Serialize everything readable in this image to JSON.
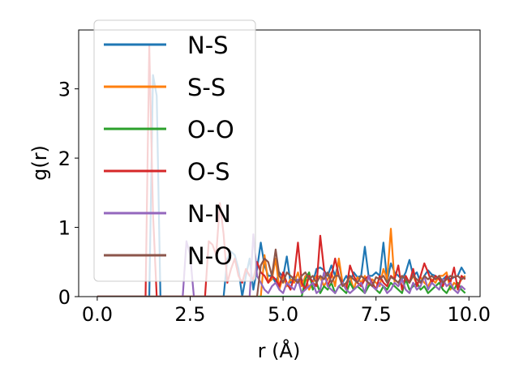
{
  "chart_data": {
    "type": "line",
    "title": "",
    "xlabel": "r (Å)",
    "ylabel": "g(r)",
    "xlim": [
      -0.5,
      10.3
    ],
    "ylim": [
      0,
      3.85
    ],
    "xticks": [
      0.0,
      2.5,
      5.0,
      7.5,
      10.0
    ],
    "xtick_labels": [
      "0.0",
      "2.5",
      "5.0",
      "7.5",
      "10.0"
    ],
    "yticks": [
      0,
      1,
      2,
      3
    ],
    "ytick_labels": [
      "0",
      "1",
      "2",
      "3"
    ],
    "grid": false,
    "legend_position": "top-left",
    "x": [
      0.0,
      0.1,
      0.2,
      0.3,
      0.4,
      0.5,
      0.6,
      0.7,
      0.8,
      0.9,
      1.0,
      1.1,
      1.2,
      1.3,
      1.4,
      1.5,
      1.6,
      1.7,
      1.8,
      1.9,
      2.0,
      2.1,
      2.2,
      2.3,
      2.4,
      2.5,
      2.6,
      2.7,
      2.8,
      2.9,
      3.0,
      3.1,
      3.2,
      3.3,
      3.4,
      3.5,
      3.6,
      3.7,
      3.8,
      3.9,
      4.0,
      4.1,
      4.2,
      4.3,
      4.4,
      4.5,
      4.6,
      4.7,
      4.8,
      4.9,
      5.0,
      5.1,
      5.2,
      5.3,
      5.4,
      5.5,
      5.6,
      5.7,
      5.8,
      5.9,
      6.0,
      6.1,
      6.2,
      6.3,
      6.4,
      6.5,
      6.6,
      6.7,
      6.8,
      6.9,
      7.0,
      7.1,
      7.2,
      7.3,
      7.4,
      7.5,
      7.6,
      7.7,
      7.8,
      7.9,
      8.0,
      8.1,
      8.2,
      8.3,
      8.4,
      8.5,
      8.6,
      8.7,
      8.8,
      8.9,
      9.0,
      9.1,
      9.2,
      9.3,
      9.4,
      9.5,
      9.6,
      9.7,
      9.8,
      9.9
    ],
    "series": [
      {
        "name": "N-S",
        "color": "#1f77b4",
        "values": [
          0,
          0,
          0,
          0,
          0,
          0,
          0,
          0,
          0,
          0,
          0,
          0,
          0,
          0,
          0,
          3.2,
          2.9,
          0,
          0,
          0,
          0,
          0,
          0,
          0,
          0,
          0,
          0,
          0,
          0,
          0,
          0,
          0,
          0,
          0,
          0,
          0.55,
          0.65,
          0.6,
          0.4,
          0,
          0.3,
          0.55,
          0.1,
          0.4,
          0.78,
          0.45,
          0.3,
          0.3,
          0.2,
          0.35,
          0.28,
          0.58,
          0.2,
          0.3,
          0.2,
          0.25,
          0.12,
          0.3,
          0.2,
          0.4,
          0.42,
          0.38,
          0.3,
          0.45,
          0.3,
          0.5,
          0.2,
          0.3,
          0.2,
          0.35,
          0.28,
          0.3,
          0.72,
          0.3,
          0.3,
          0.35,
          0.3,
          0.78,
          0.22,
          0.48,
          0.35,
          0.3,
          0.25,
          0.35,
          0.53,
          0.3,
          0.35,
          0.2,
          0.3,
          0.38,
          0.32,
          0.3,
          0.25,
          0.25,
          0.3,
          0.25,
          0.28,
          0.3,
          0.42,
          0.33
        ]
      },
      {
        "name": "S-S",
        "color": "#ff7f0e",
        "values": [
          0,
          0,
          0,
          0,
          0,
          0,
          0,
          0,
          0,
          0,
          0,
          0,
          0,
          0,
          0,
          0,
          0,
          0,
          0,
          0,
          0,
          0,
          0,
          0,
          0,
          0,
          0,
          0,
          0,
          0,
          0,
          0,
          0,
          0,
          0,
          0,
          0,
          0,
          0,
          0,
          0,
          0,
          0,
          0,
          0,
          0.6,
          0.2,
          0.25,
          0.55,
          0.1,
          0.3,
          0.15,
          0.25,
          0.2,
          0.35,
          0.15,
          0.3,
          0.1,
          0.2,
          0.3,
          0.28,
          0.15,
          0.25,
          0.35,
          0.15,
          0.55,
          0.2,
          0.15,
          0.3,
          0.1,
          0.28,
          0.2,
          0.3,
          0.15,
          0.25,
          0.2,
          0.15,
          0.4,
          0.25,
          0.98,
          0.2,
          0.15,
          0.3,
          0.25,
          0.2,
          0.3,
          0.18,
          0.28,
          0.2,
          0.15,
          0.25,
          0.2,
          0.3,
          0.3,
          0.35,
          0.1,
          0.2,
          0.15,
          0.25,
          0.3
        ]
      },
      {
        "name": "O-O",
        "color": "#2ca02c",
        "values": [
          0,
          0,
          0,
          0,
          0,
          0,
          0,
          0,
          0,
          0,
          0,
          0,
          0,
          0,
          0,
          0,
          0,
          0,
          0,
          0,
          0,
          0,
          0,
          0,
          0,
          0,
          0,
          0,
          0,
          0,
          0,
          0,
          0,
          0,
          0,
          0,
          0,
          0,
          0,
          0,
          0,
          0,
          0,
          0,
          0,
          0,
          0,
          0,
          0,
          0,
          0,
          0,
          0,
          0,
          0,
          0,
          0.25,
          0.35,
          0.1,
          0.2,
          0.05,
          0.15,
          0.1,
          0.2,
          0.05,
          0.15,
          0.1,
          0.05,
          0.2,
          0.1,
          0.15,
          0.1,
          0.05,
          0.15,
          0.2,
          0.1,
          0.05,
          0.15,
          0.1,
          0.2,
          0.15,
          0.1,
          0.05,
          0.25,
          0.1,
          0.15,
          0.2,
          0.1,
          0.15,
          0.05,
          0.1,
          0.15,
          0.2,
          0.1,
          0.05,
          0.15,
          0.1,
          0.2,
          0.1,
          0.05
        ]
      },
      {
        "name": "O-S",
        "color": "#d62728",
        "values": [
          0,
          0,
          0,
          0,
          0,
          0,
          0,
          0,
          0,
          0,
          0,
          0,
          0,
          0,
          3.62,
          1.2,
          0,
          0,
          0,
          0,
          0,
          0,
          0,
          0,
          0,
          0,
          0,
          0,
          0,
          0,
          0.8,
          0.75,
          0.6,
          1.35,
          0.9,
          0.2,
          0.4,
          0.55,
          0.3,
          0.2,
          0.4,
          0.3,
          0.25,
          0.5,
          0.35,
          0.3,
          0.2,
          0.3,
          0.25,
          0.15,
          0.35,
          0.2,
          0.1,
          0.3,
          0.78,
          0.2,
          0.1,
          0.3,
          0.2,
          0.15,
          0.88,
          0.4,
          0.15,
          0.3,
          0.55,
          0.3,
          0.2,
          0.1,
          0.45,
          0.3,
          0.2,
          0.15,
          0.25,
          0.3,
          0.2,
          0.1,
          0.3,
          0.2,
          0.15,
          0.3,
          0.25,
          0.45,
          0.1,
          0.3,
          0.2,
          0.4,
          0.15,
          0.3,
          0.48,
          0.35,
          0.2,
          0.3,
          0.25,
          0.15,
          0.3,
          0.2,
          0.42,
          0.1,
          0.3,
          0.25
        ]
      },
      {
        "name": "N-N",
        "color": "#9467bd",
        "values": [
          0,
          0,
          0,
          0,
          0,
          0,
          0,
          0,
          0,
          0,
          0,
          0,
          0,
          0,
          0,
          0,
          0,
          0,
          0,
          0,
          0,
          0,
          0,
          0,
          0.8,
          0.6,
          0,
          0,
          0,
          0,
          0,
          0,
          0,
          0,
          0,
          0,
          0,
          0,
          0,
          0,
          0,
          0,
          0.9,
          0.3,
          0.2,
          0.1,
          0.05,
          0.15,
          0.2,
          0.1,
          0.05,
          0.2,
          0.15,
          0.1,
          0.25,
          0.05,
          0.1,
          0.15,
          0.2,
          0.05,
          0.1,
          0.35,
          0.15,
          0.1,
          0.05,
          0.15,
          0.2,
          0.1,
          0.05,
          0.1,
          0.15,
          0.2,
          0.05,
          0.3,
          0.15,
          0.1,
          0.2,
          0.15,
          0.05,
          0.1,
          0.2,
          0.15,
          0.25,
          0.1,
          0.05,
          0.2,
          0.1,
          0.15,
          0.3,
          0.1,
          0.2,
          0.15,
          0.1,
          0.25,
          0.15,
          0.2,
          0.1,
          0.05,
          0.15,
          0.1
        ]
      },
      {
        "name": "N-O",
        "color": "#8c564b",
        "values": [
          0,
          0,
          0,
          0,
          0,
          0,
          0,
          0,
          0,
          0,
          0,
          0,
          0,
          0,
          0,
          0,
          0,
          0,
          0,
          0,
          0,
          0,
          0,
          0,
          0,
          0,
          0,
          0,
          0,
          0,
          0,
          0,
          0,
          0,
          0,
          0,
          0,
          0,
          0,
          0,
          0,
          0,
          0,
          0,
          0.45,
          0.55,
          0.5,
          0.3,
          0.68,
          0.3,
          0.2,
          0.35,
          0.3,
          0.25,
          0.2,
          0.3,
          0.35,
          0.25,
          0.3,
          0.2,
          0.3,
          0.25,
          0.35,
          0.2,
          0.3,
          0.3,
          0.15,
          0.2,
          0.3,
          0.25,
          0.2,
          0.3,
          0.25,
          0.2,
          0.15,
          0.28,
          0.25,
          0.3,
          0.2,
          0.28,
          0.25,
          0.2,
          0.3,
          0.25,
          0.2,
          0.3,
          0.25,
          0.2,
          0.3,
          0.25,
          0.3,
          0.25,
          0.3,
          0.2,
          0.25,
          0.3,
          0.28,
          0.3,
          0.25,
          0.28
        ]
      }
    ]
  }
}
